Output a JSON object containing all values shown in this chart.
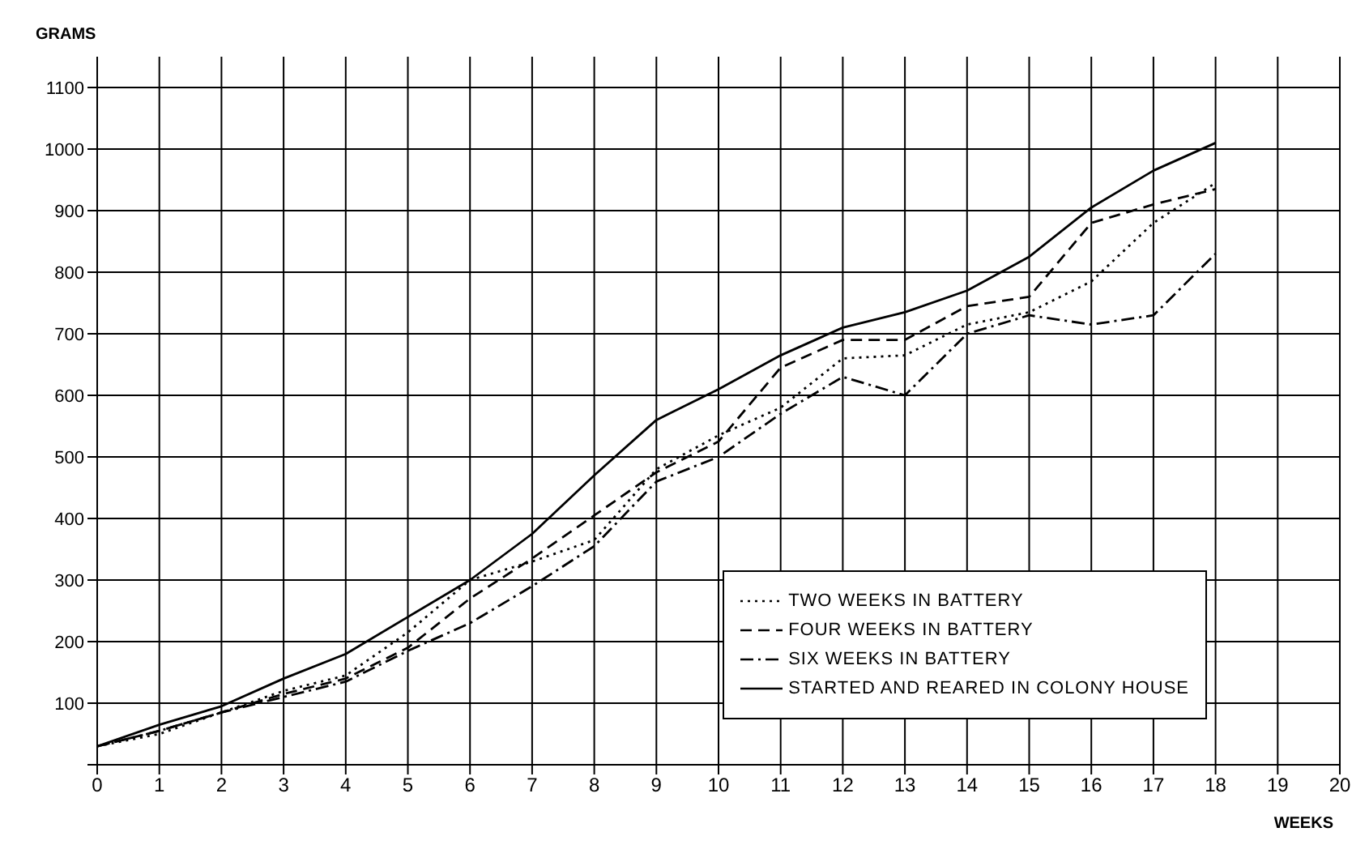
{
  "chart_data": {
    "type": "line",
    "xlabel": "WEEKS",
    "ylabel": "GRAMS",
    "x": [
      0,
      1,
      2,
      3,
      4,
      5,
      6,
      7,
      8,
      9,
      10,
      11,
      12,
      13,
      14,
      15,
      16,
      17,
      18
    ],
    "series": [
      {
        "name": "TWO WEEKS IN BATTERY",
        "color": "#000000",
        "line_style": "dotted",
        "values": [
          30,
          50,
          85,
          120,
          145,
          215,
          300,
          330,
          365,
          480,
          535,
          580,
          660,
          665,
          715,
          735,
          785,
          880,
          945
        ]
      },
      {
        "name": "FOUR WEEKS IN BATTERY",
        "color": "#000000",
        "line_style": "dashed",
        "values": [
          30,
          55,
          85,
          115,
          140,
          190,
          270,
          335,
          405,
          475,
          525,
          645,
          690,
          690,
          745,
          760,
          880,
          910,
          935
        ]
      },
      {
        "name": "SIX WEEKS IN BATTERY",
        "color": "#000000",
        "line_style": "dashdot",
        "values": [
          30,
          55,
          85,
          110,
          135,
          185,
          230,
          290,
          355,
          460,
          500,
          570,
          630,
          600,
          700,
          730,
          715,
          730,
          830
        ]
      },
      {
        "name": "STARTED AND REARED IN COLONY HOUSE",
        "color": "#000000",
        "line_style": "solid",
        "values": [
          30,
          65,
          95,
          140,
          180,
          240,
          300,
          375,
          470,
          560,
          610,
          665,
          710,
          735,
          770,
          825,
          905,
          965,
          1010
        ]
      }
    ],
    "xlim": [
      0,
      20
    ],
    "xticks": [
      0,
      1,
      2,
      3,
      4,
      5,
      6,
      7,
      8,
      9,
      10,
      11,
      12,
      13,
      14,
      15,
      16,
      17,
      18,
      19,
      20
    ],
    "ylim": [
      0,
      1150
    ],
    "yticks": [
      {
        "value": 0,
        "label": null
      },
      100,
      200,
      300,
      400,
      500,
      600,
      700,
      800,
      900,
      1000,
      1100
    ],
    "grid": true,
    "legend": "bottom right",
    "marker": "none"
  }
}
